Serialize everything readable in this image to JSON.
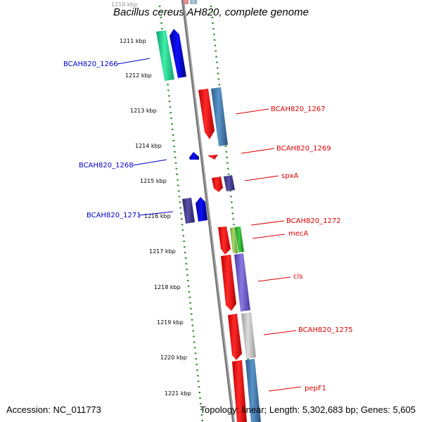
{
  "title": "Bacillus cereus AH820, complete genome",
  "footer": {
    "accession": "Accession: NC_011773",
    "summary": "Topology: linear; Length: 5,302,683 bp; Genes: 5,605"
  },
  "colors": {
    "label_left": "#0000cc",
    "label_right": "#dd0000",
    "ruler": "#228822",
    "backbone": "#777777"
  },
  "ruler": {
    "partial_label": "1210 kbp",
    "ticks": [
      "1211 kbp",
      "1212 kbp",
      "1213 kbp",
      "1214 kbp",
      "1215 kbp",
      "1216 kbp",
      "1217 kbp",
      "1218 kbp",
      "1219 kbp",
      "1220 kbp",
      "1221 kbp"
    ]
  },
  "genes_left": [
    {
      "label": "BCAH820_1266"
    },
    {
      "label": "BCAH820_1268"
    },
    {
      "label": "BCAH820_1271"
    }
  ],
  "genes_right": [
    {
      "label": "BCAH820_1267"
    },
    {
      "label": "BCAH820_1269"
    },
    {
      "label": "spxA"
    },
    {
      "label": "BCAH820_1272"
    },
    {
      "label": "mecA"
    },
    {
      "label": "cls"
    },
    {
      "label": "BCAH820_1275"
    },
    {
      "label": "pepF1"
    }
  ]
}
